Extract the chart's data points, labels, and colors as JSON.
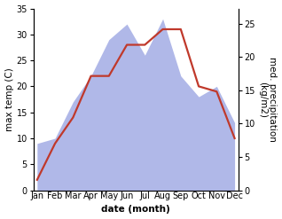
{
  "months": [
    "Jan",
    "Feb",
    "Mar",
    "Apr",
    "May",
    "Jun",
    "Jul",
    "Aug",
    "Sep",
    "Oct",
    "Nov",
    "Dec"
  ],
  "temperature": [
    2,
    9,
    14,
    22,
    22,
    28,
    28,
    31,
    31,
    20,
    19,
    10
  ],
  "precipitation": [
    9,
    10,
    17,
    22,
    29,
    32,
    26,
    33,
    22,
    18,
    20,
    13
  ],
  "temp_color": "#c0392b",
  "precip_color": "#b0b8e8",
  "background_color": "#ffffff",
  "ylabel_left": "max temp (C)",
  "ylabel_right": "med. precipitation\n(kg/m2)",
  "xlabel": "date (month)",
  "ylim_left": [
    0,
    35
  ],
  "ylim_right": [
    0,
    27.3
  ],
  "yticks_left": [
    0,
    5,
    10,
    15,
    20,
    25,
    30,
    35
  ],
  "yticks_right": [
    0,
    5,
    10,
    15,
    20,
    25
  ],
  "label_fontsize": 7.5,
  "tick_fontsize": 7.0,
  "linewidth": 1.6
}
